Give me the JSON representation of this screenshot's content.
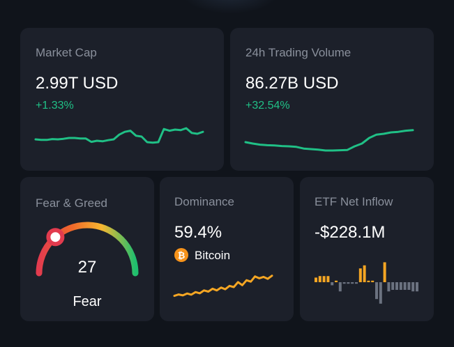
{
  "cards": {
    "market_cap": {
      "label": "Market Cap",
      "value": "2.99T USD",
      "change": "+1.33%"
    },
    "trading_volume": {
      "label": "24h Trading Volume",
      "value": "86.27B USD",
      "change": "+32.54%"
    },
    "fear_greed": {
      "label": "Fear & Greed",
      "score": 27,
      "sentiment": "Fear"
    },
    "dominance": {
      "label": "Dominance",
      "value": "59.4%",
      "coin_name": "Bitcoin",
      "coin_icon": "bitcoin-icon"
    },
    "etf_net_inflow": {
      "label": "ETF Net Inflow",
      "value": "-$228.1M"
    }
  },
  "colors": {
    "positive": "#20c086",
    "dominance_line": "#f5a623",
    "etf_positive_bar": "#f5a623",
    "etf_negative_bar": "#6b7280",
    "gauge_gradient": [
      "#e23b4e",
      "#f06a2a",
      "#f7b731",
      "#1fbf6e"
    ]
  },
  "chart_data": [
    {
      "id": "market-cap-sparkline",
      "type": "line",
      "values": [
        0.55,
        0.53,
        0.53,
        0.56,
        0.55,
        0.57,
        0.6,
        0.6,
        0.58,
        0.58,
        0.46,
        0.5,
        0.48,
        0.52,
        0.55,
        0.72,
        0.82,
        0.86,
        0.68,
        0.65,
        0.45,
        0.43,
        0.45,
        0.92,
        0.86,
        0.9,
        0.88,
        0.95,
        0.78,
        0.75,
        0.82
      ]
    },
    {
      "id": "trading-volume-sparkline",
      "type": "line",
      "values": [
        0.45,
        0.4,
        0.36,
        0.34,
        0.33,
        0.31,
        0.3,
        0.28,
        0.22,
        0.2,
        0.18,
        0.15,
        0.15,
        0.16,
        0.17,
        0.3,
        0.4,
        0.6,
        0.72,
        0.75,
        0.8,
        0.82,
        0.86,
        0.88
      ]
    },
    {
      "id": "dominance-sparkline",
      "type": "line",
      "values": [
        0.1,
        0.16,
        0.12,
        0.2,
        0.15,
        0.26,
        0.21,
        0.33,
        0.28,
        0.4,
        0.33,
        0.45,
        0.38,
        0.52,
        0.47,
        0.68,
        0.55,
        0.76,
        0.7,
        0.92,
        0.84,
        0.9,
        0.82,
        0.95
      ]
    },
    {
      "id": "etf-net-inflow-bars",
      "type": "bar",
      "values": [
        3,
        4,
        4,
        4,
        -2,
        1,
        -6,
        -1,
        -1,
        -1,
        -1,
        9,
        11,
        1,
        1,
        -11,
        -14,
        13,
        -6,
        -5,
        -5,
        -5,
        -5,
        -5,
        -6,
        -6
      ]
    }
  ]
}
